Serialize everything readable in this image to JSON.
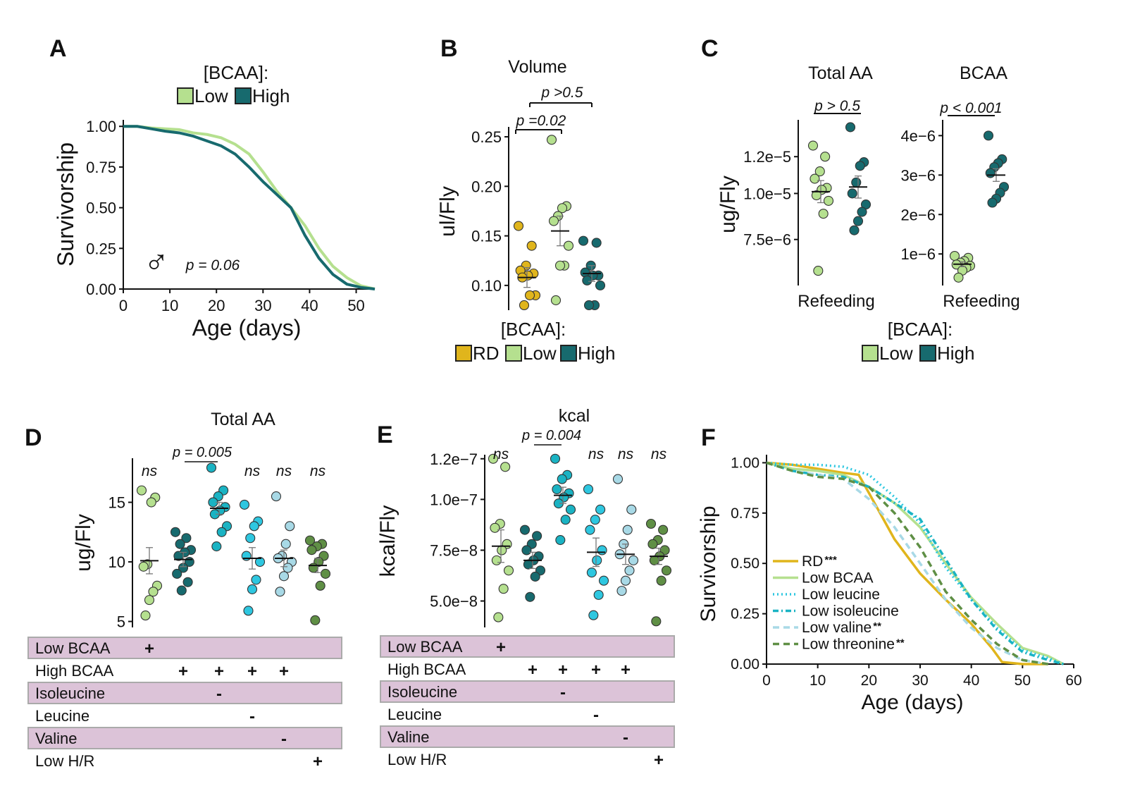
{
  "colors": {
    "rd": "#e0b51c",
    "low": "#b5e08f",
    "high": "#176a6e",
    "isoleucine_minus": "#1ab3c3",
    "leucine_minus": "#2ec7e0",
    "valine_minus": "#a8d9e6",
    "low_hr": "#5f8f45",
    "table_band": "#dcc3d8",
    "table_border": "#aaaaaa"
  },
  "chart_data": [
    {
      "panel": "A",
      "type": "line",
      "legend_title": "[BCAA]:",
      "legend": [
        "Low",
        "High"
      ],
      "xlabel": "Age (days)",
      "ylabel": "Survivorship",
      "xlim": [
        0,
        54
      ],
      "ylim": [
        0,
        1.04
      ],
      "xticks": [
        "0",
        "10",
        "20",
        "30",
        "40",
        "50"
      ],
      "yticks": [
        "0.00",
        "0.25",
        "0.50",
        "0.75",
        "1.00"
      ],
      "symbol": "♂",
      "annotation": "p = 0.06",
      "series": [
        {
          "name": "Low",
          "color": "low",
          "x": [
            0,
            3,
            6,
            9,
            12,
            15,
            18,
            21,
            24,
            27,
            30,
            33,
            36,
            39,
            42,
            45,
            48,
            51,
            54
          ],
          "y": [
            1.0,
            1.0,
            0.99,
            0.985,
            0.98,
            0.96,
            0.95,
            0.93,
            0.89,
            0.83,
            0.72,
            0.6,
            0.5,
            0.39,
            0.25,
            0.14,
            0.07,
            0.02,
            0.0
          ]
        },
        {
          "name": "High",
          "color": "high",
          "x": [
            0,
            3,
            6,
            9,
            12,
            15,
            18,
            21,
            24,
            27,
            30,
            33,
            36,
            39,
            42,
            45,
            48,
            51,
            54
          ],
          "y": [
            1.0,
            1.0,
            0.985,
            0.97,
            0.96,
            0.94,
            0.91,
            0.88,
            0.83,
            0.75,
            0.66,
            0.58,
            0.5,
            0.33,
            0.19,
            0.09,
            0.03,
            0.01,
            0.0
          ]
        }
      ]
    },
    {
      "panel": "B",
      "type": "scatter",
      "title": "Volume",
      "ylabel": "ul/Fly",
      "ylim": [
        0.075,
        0.26
      ],
      "yticks": [
        0.1,
        0.15,
        0.2,
        0.25
      ],
      "ytick_labels": [
        "0.10",
        "0.15",
        "0.20",
        "0.25"
      ],
      "legend_title": "[BCAA]:",
      "legend": [
        "RD",
        "Low",
        "High"
      ],
      "comparisons": [
        {
          "label": "p =0.02",
          "from": 0,
          "to": 1
        },
        {
          "label": "p >0.5",
          "from": 1,
          "to": 2
        }
      ],
      "groups": [
        {
          "name": "RD",
          "color": "rd",
          "mean": 0.108,
          "sem": 0.01,
          "values": [
            0.16,
            0.14,
            0.12,
            0.115,
            0.112,
            0.11,
            0.108,
            0.09,
            0.09,
            0.08
          ]
        },
        {
          "name": "Low",
          "color": "low",
          "mean": 0.155,
          "sem": 0.015,
          "values": [
            0.247,
            0.18,
            0.178,
            0.17,
            0.165,
            0.14,
            0.12,
            0.12,
            0.085
          ]
        },
        {
          "name": "High",
          "color": "high",
          "mean": 0.112,
          "sem": 0.008,
          "values": [
            0.145,
            0.143,
            0.12,
            0.113,
            0.11,
            0.11,
            0.105,
            0.1,
            0.08,
            0.08
          ]
        }
      ]
    },
    {
      "panel": "C",
      "type": "scatter",
      "subplots": [
        {
          "title": "Total AA",
          "ylabel": "ug/Fly",
          "xlabel": "Refeeding",
          "ylim": [
            5e-06,
            1.4e-05
          ],
          "yticks": [
            7.5e-06,
            1e-05,
            1.2e-05
          ],
          "ytick_labels": [
            "7.5e−6",
            "1.0e−5",
            "1.2e−5"
          ],
          "comparison": "p > 0.5",
          "groups": [
            {
              "name": "Low",
              "color": "low",
              "mean": 1.01e-05,
              "sem": 6e-07,
              "values": [
                1.26e-05,
                1.2e-05,
                1.12e-05,
                1.08e-05,
                1.03e-05,
                1.02e-05,
                9.9e-06,
                9.6e-06,
                8.9e-06,
                5.8e-06
              ]
            },
            {
              "name": "High",
              "color": "high",
              "mean": 1.035e-05,
              "sem": 6e-07,
              "values": [
                1.36e-05,
                1.17e-05,
                1.15e-05,
                1.06e-05,
                1e-05,
                9.4e-06,
                9e-06,
                8.5e-06,
                8e-06
              ]
            }
          ]
        },
        {
          "title": "BCAA",
          "xlabel": "Refeeding",
          "ylim": [
            2e-07,
            4.4e-06
          ],
          "yticks": [
            1e-06,
            2e-06,
            3e-06,
            4e-06
          ],
          "ytick_labels": [
            "1e−6",
            "2e−6",
            "3e−6",
            "4e−6"
          ],
          "comparison": "p < 0.001",
          "groups": [
            {
              "name": "Low",
              "color": "low",
              "mean": 7.4e-07,
              "sem": 6e-08,
              "values": [
                9.5e-07,
                9e-07,
                8.2e-07,
                7.8e-07,
                7.3e-07,
                7e-07,
                6.5e-07,
                5.8e-07,
                4e-07
              ]
            },
            {
              "name": "High",
              "color": "high",
              "mean": 3e-06,
              "sem": 1.6e-07,
              "values": [
                4e-06,
                3.4e-06,
                3.3e-06,
                3.2e-06,
                3.05e-06,
                2.7e-06,
                2.55e-06,
                2.4e-06,
                2.3e-06
              ]
            }
          ]
        }
      ],
      "legend_title": "[BCAA]:",
      "legend": [
        "Low",
        "High"
      ]
    },
    {
      "panel": "D",
      "type": "scatter",
      "title": "Total AA",
      "ylabel": "ug/Fly",
      "ylim": [
        4.5,
        18.7
      ],
      "yticks": [
        5,
        10,
        15
      ],
      "ytick_labels": [
        "5",
        "10",
        "15"
      ],
      "significance": [
        "ns",
        "",
        "p = 0.005",
        "ns",
        "ns",
        "ns"
      ],
      "groups": [
        {
          "color": "low",
          "mean": 10.1,
          "sem": 1.1,
          "values": [
            16.0,
            15.4,
            15.0,
            9.8,
            9.6,
            8.0,
            7.5,
            6.8,
            5.5
          ]
        },
        {
          "color": "high",
          "mean": 10.2,
          "sem": 0.6,
          "values": [
            12.5,
            12.0,
            11.5,
            11.0,
            10.8,
            10.5,
            10.0,
            9.5,
            9.0,
            8.3,
            7.6
          ]
        },
        {
          "color": "isoleucine_minus",
          "mean": 14.5,
          "sem": 0.5,
          "values": [
            17.9,
            16.0,
            15.5,
            15.0,
            14.6,
            14.3,
            14.0,
            13.0,
            12.5,
            11.3
          ]
        },
        {
          "color": "leucine_minus",
          "mean": 10.3,
          "sem": 0.9,
          "values": [
            14.8,
            13.4,
            13.0,
            12.0,
            10.5,
            10.0,
            8.5,
            7.7,
            5.9
          ]
        },
        {
          "color": "valine_minus",
          "mean": 10.3,
          "sem": 0.7,
          "values": [
            15.5,
            13.0,
            11.5,
            10.5,
            10.3,
            10.0,
            9.5,
            8.8,
            7.5
          ]
        },
        {
          "color": "low_hr",
          "mean": 9.7,
          "sem": 0.6,
          "values": [
            11.8,
            11.5,
            11.3,
            11.0,
            10.5,
            10.0,
            9.5,
            9.0,
            8.0,
            5.1
          ]
        }
      ]
    },
    {
      "panel": "E",
      "type": "scatter",
      "title": "kcal",
      "ylabel": "kcal/Fly",
      "ylim": [
        3.7e-08,
        1.22e-07
      ],
      "yticks": [
        5e-08,
        7.5e-08,
        1e-07,
        1.2e-07
      ],
      "ytick_labels": [
        "5.0e−8",
        "7.5e−8",
        "1.0e−7",
        "1.2e−7"
      ],
      "significance": [
        "ns",
        "",
        "p = 0.004",
        "ns",
        "ns",
        "ns"
      ],
      "groups": [
        {
          "color": "low",
          "mean": 7.7e-08,
          "sem": 8e-09,
          "values": [
            1.2e-07,
            1.16e-07,
            8.8e-08,
            8.6e-08,
            7.8e-08,
            7.5e-08,
            7e-08,
            6.5e-08,
            5.6e-08,
            4.2e-08
          ]
        },
        {
          "color": "high",
          "mean": 7e-08,
          "sem": 4e-09,
          "values": [
            8.5e-08,
            8.2e-08,
            7.8e-08,
            7.5e-08,
            7.2e-08,
            7e-08,
            6.8e-08,
            6.5e-08,
            6.2e-08,
            5.2e-08
          ]
        },
        {
          "color": "isoleucine_minus",
          "mean": 1.02e-07,
          "sem": 4e-09,
          "values": [
            1.2e-07,
            1.12e-07,
            1.1e-07,
            1.05e-07,
            1.03e-07,
            1.01e-07,
            9.8e-08,
            9.5e-08,
            9e-08,
            8e-08
          ]
        },
        {
          "color": "leucine_minus",
          "mean": 7.4e-08,
          "sem": 7e-09,
          "values": [
            1.05e-07,
            9.5e-08,
            9e-08,
            8.5e-08,
            7.5e-08,
            7e-08,
            6.4e-08,
            6e-08,
            5.3e-08,
            4.3e-08
          ]
        },
        {
          "color": "valine_minus",
          "mean": 7.3e-08,
          "sem": 5e-09,
          "values": [
            1.1e-07,
            9.5e-08,
            8.5e-08,
            7.8e-08,
            7.3e-08,
            7e-08,
            6.5e-08,
            6e-08,
            5.5e-08
          ]
        },
        {
          "color": "low_hr",
          "mean": 7.2e-08,
          "sem": 4e-09,
          "values": [
            8.8e-08,
            8.5e-08,
            8e-08,
            7.8e-08,
            7.5e-08,
            7.2e-08,
            7e-08,
            6.5e-08,
            6e-08,
            4e-08
          ]
        }
      ]
    },
    {
      "panel": "F",
      "type": "line",
      "xlabel": "Age (days)",
      "ylabel": "Survivorship",
      "xlim": [
        0,
        60
      ],
      "ylim": [
        0,
        1.04
      ],
      "xticks": [
        "0",
        "10",
        "20",
        "30",
        "40",
        "50",
        "60"
      ],
      "yticks": [
        "0.00",
        "0.25",
        "0.50",
        "0.75",
        "1.00"
      ],
      "series": [
        {
          "name": "RD",
          "stars": "***",
          "color": "rd",
          "dash": "solid",
          "x": [
            0,
            5,
            10,
            15,
            18,
            20,
            25,
            30,
            35,
            40,
            44,
            46,
            50,
            55
          ],
          "y": [
            1.0,
            0.99,
            0.97,
            0.95,
            0.94,
            0.85,
            0.62,
            0.45,
            0.32,
            0.2,
            0.08,
            0.01,
            0.0,
            0.0
          ]
        },
        {
          "name": "Low BCAA",
          "stars": "",
          "color": "low",
          "dash": "solid",
          "x": [
            0,
            5,
            10,
            15,
            20,
            25,
            30,
            35,
            40,
            45,
            50,
            55,
            58
          ],
          "y": [
            1.0,
            0.97,
            0.96,
            0.94,
            0.88,
            0.8,
            0.68,
            0.5,
            0.33,
            0.2,
            0.08,
            0.04,
            0.0
          ]
        },
        {
          "name": "Low leucine",
          "stars": "",
          "color": "leucine_minus",
          "dash": "dot",
          "x": [
            0,
            5,
            10,
            15,
            20,
            25,
            30,
            35,
            40,
            45,
            50,
            55,
            58
          ],
          "y": [
            1.0,
            0.99,
            0.99,
            0.98,
            0.94,
            0.83,
            0.7,
            0.48,
            0.32,
            0.18,
            0.07,
            0.03,
            0.0
          ]
        },
        {
          "name": "Low isoleucine",
          "stars": "",
          "color": "isoleucine_minus",
          "dash": "dashdot",
          "x": [
            0,
            5,
            10,
            15,
            20,
            25,
            30,
            35,
            40,
            45,
            50,
            55,
            58
          ],
          "y": [
            1.0,
            0.96,
            0.94,
            0.93,
            0.88,
            0.8,
            0.72,
            0.52,
            0.32,
            0.17,
            0.06,
            0.02,
            0.0
          ]
        },
        {
          "name": "Low valine",
          "stars": "**",
          "color": "valine_minus",
          "dash": "dash",
          "x": [
            0,
            5,
            10,
            15,
            20,
            25,
            30,
            35,
            40,
            45,
            50,
            55
          ],
          "y": [
            1.0,
            0.96,
            0.94,
            0.92,
            0.82,
            0.68,
            0.5,
            0.32,
            0.18,
            0.08,
            0.02,
            0.0
          ]
        },
        {
          "name": "Low threonine",
          "stars": "**",
          "color": "low_hr",
          "dash": "dash",
          "x": [
            0,
            5,
            10,
            15,
            20,
            25,
            30,
            35,
            40,
            45,
            50,
            55
          ],
          "y": [
            1.0,
            0.96,
            0.93,
            0.92,
            0.88,
            0.75,
            0.58,
            0.36,
            0.22,
            0.1,
            0.02,
            0.0
          ]
        }
      ]
    }
  ],
  "conditions_table": {
    "rows": [
      {
        "label": "Low BCAA",
        "shaded": true,
        "marks": [
          "+",
          "",
          "",
          "",
          "",
          ""
        ]
      },
      {
        "label": "High BCAA",
        "shaded": false,
        "marks": [
          "",
          "+",
          "+",
          "+",
          "+",
          ""
        ]
      },
      {
        "label": "Isoleucine",
        "shaded": true,
        "marks": [
          "",
          "",
          "-",
          "",
          "",
          ""
        ]
      },
      {
        "label": "Leucine",
        "shaded": false,
        "marks": [
          "",
          "",
          "",
          "-",
          "",
          ""
        ]
      },
      {
        "label": "Valine",
        "shaded": true,
        "marks": [
          "",
          "",
          "",
          "",
          "-",
          ""
        ]
      },
      {
        "label": "Low H/R",
        "shaded": false,
        "marks": [
          "",
          "",
          "",
          "",
          "",
          "+"
        ]
      }
    ]
  },
  "panel_letters": [
    "A",
    "B",
    "C",
    "D",
    "E",
    "F"
  ]
}
